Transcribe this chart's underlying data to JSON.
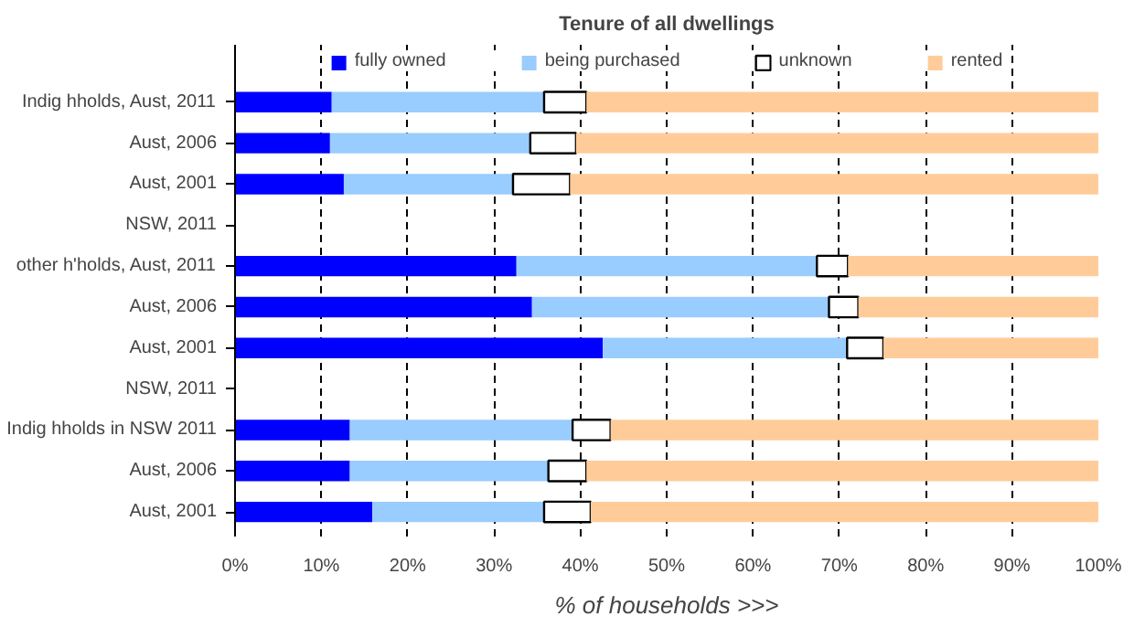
{
  "chart_data": {
    "type": "bar",
    "orientation": "horizontal",
    "stacked": true,
    "title": "Tenure of all dwellings",
    "xlabel": "% of households >>>",
    "categories": [
      "Indig hholds, Aust, 2011",
      "Aust, 2006",
      "Aust, 2001",
      "NSW, 2011",
      "other h'holds, Aust, 2011",
      "Aust, 2006",
      "Aust, 2001",
      "NSW, 2011",
      "Indig hholds in NSW 2011",
      "Aust, 2006",
      "Aust, 2001"
    ],
    "series": [
      {
        "name": "fully owned",
        "color": "#0000ff",
        "values": [
          11.2,
          11.0,
          12.6,
          null,
          32.6,
          34.4,
          42.6,
          null,
          13.3,
          13.3,
          15.9
        ]
      },
      {
        "name": "being purchased",
        "color": "#99ccff",
        "values": [
          24.6,
          23.2,
          19.6,
          null,
          34.8,
          34.4,
          28.3,
          null,
          25.8,
          23.0,
          19.9
        ]
      },
      {
        "name": "unknown",
        "color": "#ffffff",
        "values": [
          4.9,
          5.3,
          6.6,
          null,
          3.6,
          3.4,
          4.2,
          null,
          4.4,
          4.4,
          5.4
        ]
      },
      {
        "name": "rented",
        "color": "#ffcc99",
        "values": [
          59.3,
          60.5,
          61.2,
          null,
          29.0,
          27.8,
          24.9,
          null,
          56.5,
          59.3,
          58.8
        ]
      }
    ],
    "xlim": [
      0,
      100
    ],
    "xticks": [
      {
        "value": 0,
        "label": "0%"
      },
      {
        "value": 10,
        "label": "10%"
      },
      {
        "value": 20,
        "label": "20%"
      },
      {
        "value": 30,
        "label": "30%"
      },
      {
        "value": 40,
        "label": "40%"
      },
      {
        "value": 50,
        "label": "50%"
      },
      {
        "value": 60,
        "label": "60%"
      },
      {
        "value": 70,
        "label": "70%"
      },
      {
        "value": 80,
        "label": "80%"
      },
      {
        "value": 90,
        "label": "90%"
      },
      {
        "value": 100,
        "label": "100%"
      }
    ],
    "grid": "x",
    "legend": "top"
  }
}
